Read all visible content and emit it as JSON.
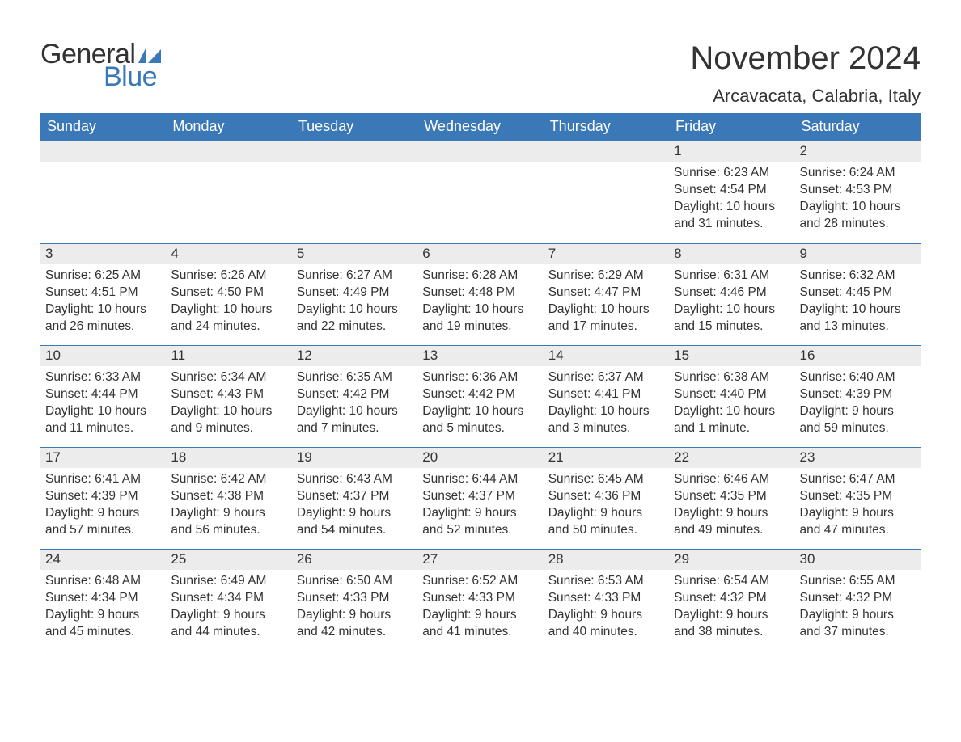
{
  "brand": {
    "general": "General",
    "blue": "Blue",
    "sail_color": "#3b78b8"
  },
  "title": "November 2024",
  "location": "Arcavacata, Calabria, Italy",
  "colors": {
    "header_bg": "#3b78b8",
    "header_text": "#ffffff",
    "daynum_bg": "#ececec",
    "text": "#333333",
    "rule": "#3b78b8",
    "background": "#ffffff"
  },
  "typography": {
    "title_fontsize": 40,
    "location_fontsize": 22,
    "weekday_fontsize": 18,
    "daynum_fontsize": 17,
    "body_fontsize": 15.5
  },
  "weekdays": [
    "Sunday",
    "Monday",
    "Tuesday",
    "Wednesday",
    "Thursday",
    "Friday",
    "Saturday"
  ],
  "weeks": [
    [
      {
        "empty": true
      },
      {
        "empty": true
      },
      {
        "empty": true
      },
      {
        "empty": true
      },
      {
        "empty": true
      },
      {
        "num": "1",
        "sunrise": "Sunrise: 6:23 AM",
        "sunset": "Sunset: 4:54 PM",
        "daylight1": "Daylight: 10 hours",
        "daylight2": "and 31 minutes."
      },
      {
        "num": "2",
        "sunrise": "Sunrise: 6:24 AM",
        "sunset": "Sunset: 4:53 PM",
        "daylight1": "Daylight: 10 hours",
        "daylight2": "and 28 minutes."
      }
    ],
    [
      {
        "num": "3",
        "sunrise": "Sunrise: 6:25 AM",
        "sunset": "Sunset: 4:51 PM",
        "daylight1": "Daylight: 10 hours",
        "daylight2": "and 26 minutes."
      },
      {
        "num": "4",
        "sunrise": "Sunrise: 6:26 AM",
        "sunset": "Sunset: 4:50 PM",
        "daylight1": "Daylight: 10 hours",
        "daylight2": "and 24 minutes."
      },
      {
        "num": "5",
        "sunrise": "Sunrise: 6:27 AM",
        "sunset": "Sunset: 4:49 PM",
        "daylight1": "Daylight: 10 hours",
        "daylight2": "and 22 minutes."
      },
      {
        "num": "6",
        "sunrise": "Sunrise: 6:28 AM",
        "sunset": "Sunset: 4:48 PM",
        "daylight1": "Daylight: 10 hours",
        "daylight2": "and 19 minutes."
      },
      {
        "num": "7",
        "sunrise": "Sunrise: 6:29 AM",
        "sunset": "Sunset: 4:47 PM",
        "daylight1": "Daylight: 10 hours",
        "daylight2": "and 17 minutes."
      },
      {
        "num": "8",
        "sunrise": "Sunrise: 6:31 AM",
        "sunset": "Sunset: 4:46 PM",
        "daylight1": "Daylight: 10 hours",
        "daylight2": "and 15 minutes."
      },
      {
        "num": "9",
        "sunrise": "Sunrise: 6:32 AM",
        "sunset": "Sunset: 4:45 PM",
        "daylight1": "Daylight: 10 hours",
        "daylight2": "and 13 minutes."
      }
    ],
    [
      {
        "num": "10",
        "sunrise": "Sunrise: 6:33 AM",
        "sunset": "Sunset: 4:44 PM",
        "daylight1": "Daylight: 10 hours",
        "daylight2": "and 11 minutes."
      },
      {
        "num": "11",
        "sunrise": "Sunrise: 6:34 AM",
        "sunset": "Sunset: 4:43 PM",
        "daylight1": "Daylight: 10 hours",
        "daylight2": "and 9 minutes."
      },
      {
        "num": "12",
        "sunrise": "Sunrise: 6:35 AM",
        "sunset": "Sunset: 4:42 PM",
        "daylight1": "Daylight: 10 hours",
        "daylight2": "and 7 minutes."
      },
      {
        "num": "13",
        "sunrise": "Sunrise: 6:36 AM",
        "sunset": "Sunset: 4:42 PM",
        "daylight1": "Daylight: 10 hours",
        "daylight2": "and 5 minutes."
      },
      {
        "num": "14",
        "sunrise": "Sunrise: 6:37 AM",
        "sunset": "Sunset: 4:41 PM",
        "daylight1": "Daylight: 10 hours",
        "daylight2": "and 3 minutes."
      },
      {
        "num": "15",
        "sunrise": "Sunrise: 6:38 AM",
        "sunset": "Sunset: 4:40 PM",
        "daylight1": "Daylight: 10 hours",
        "daylight2": "and 1 minute."
      },
      {
        "num": "16",
        "sunrise": "Sunrise: 6:40 AM",
        "sunset": "Sunset: 4:39 PM",
        "daylight1": "Daylight: 9 hours",
        "daylight2": "and 59 minutes."
      }
    ],
    [
      {
        "num": "17",
        "sunrise": "Sunrise: 6:41 AM",
        "sunset": "Sunset: 4:39 PM",
        "daylight1": "Daylight: 9 hours",
        "daylight2": "and 57 minutes."
      },
      {
        "num": "18",
        "sunrise": "Sunrise: 6:42 AM",
        "sunset": "Sunset: 4:38 PM",
        "daylight1": "Daylight: 9 hours",
        "daylight2": "and 56 minutes."
      },
      {
        "num": "19",
        "sunrise": "Sunrise: 6:43 AM",
        "sunset": "Sunset: 4:37 PM",
        "daylight1": "Daylight: 9 hours",
        "daylight2": "and 54 minutes."
      },
      {
        "num": "20",
        "sunrise": "Sunrise: 6:44 AM",
        "sunset": "Sunset: 4:37 PM",
        "daylight1": "Daylight: 9 hours",
        "daylight2": "and 52 minutes."
      },
      {
        "num": "21",
        "sunrise": "Sunrise: 6:45 AM",
        "sunset": "Sunset: 4:36 PM",
        "daylight1": "Daylight: 9 hours",
        "daylight2": "and 50 minutes."
      },
      {
        "num": "22",
        "sunrise": "Sunrise: 6:46 AM",
        "sunset": "Sunset: 4:35 PM",
        "daylight1": "Daylight: 9 hours",
        "daylight2": "and 49 minutes."
      },
      {
        "num": "23",
        "sunrise": "Sunrise: 6:47 AM",
        "sunset": "Sunset: 4:35 PM",
        "daylight1": "Daylight: 9 hours",
        "daylight2": "and 47 minutes."
      }
    ],
    [
      {
        "num": "24",
        "sunrise": "Sunrise: 6:48 AM",
        "sunset": "Sunset: 4:34 PM",
        "daylight1": "Daylight: 9 hours",
        "daylight2": "and 45 minutes."
      },
      {
        "num": "25",
        "sunrise": "Sunrise: 6:49 AM",
        "sunset": "Sunset: 4:34 PM",
        "daylight1": "Daylight: 9 hours",
        "daylight2": "and 44 minutes."
      },
      {
        "num": "26",
        "sunrise": "Sunrise: 6:50 AM",
        "sunset": "Sunset: 4:33 PM",
        "daylight1": "Daylight: 9 hours",
        "daylight2": "and 42 minutes."
      },
      {
        "num": "27",
        "sunrise": "Sunrise: 6:52 AM",
        "sunset": "Sunset: 4:33 PM",
        "daylight1": "Daylight: 9 hours",
        "daylight2": "and 41 minutes."
      },
      {
        "num": "28",
        "sunrise": "Sunrise: 6:53 AM",
        "sunset": "Sunset: 4:33 PM",
        "daylight1": "Daylight: 9 hours",
        "daylight2": "and 40 minutes."
      },
      {
        "num": "29",
        "sunrise": "Sunrise: 6:54 AM",
        "sunset": "Sunset: 4:32 PM",
        "daylight1": "Daylight: 9 hours",
        "daylight2": "and 38 minutes."
      },
      {
        "num": "30",
        "sunrise": "Sunrise: 6:55 AM",
        "sunset": "Sunset: 4:32 PM",
        "daylight1": "Daylight: 9 hours",
        "daylight2": "and 37 minutes."
      }
    ]
  ]
}
